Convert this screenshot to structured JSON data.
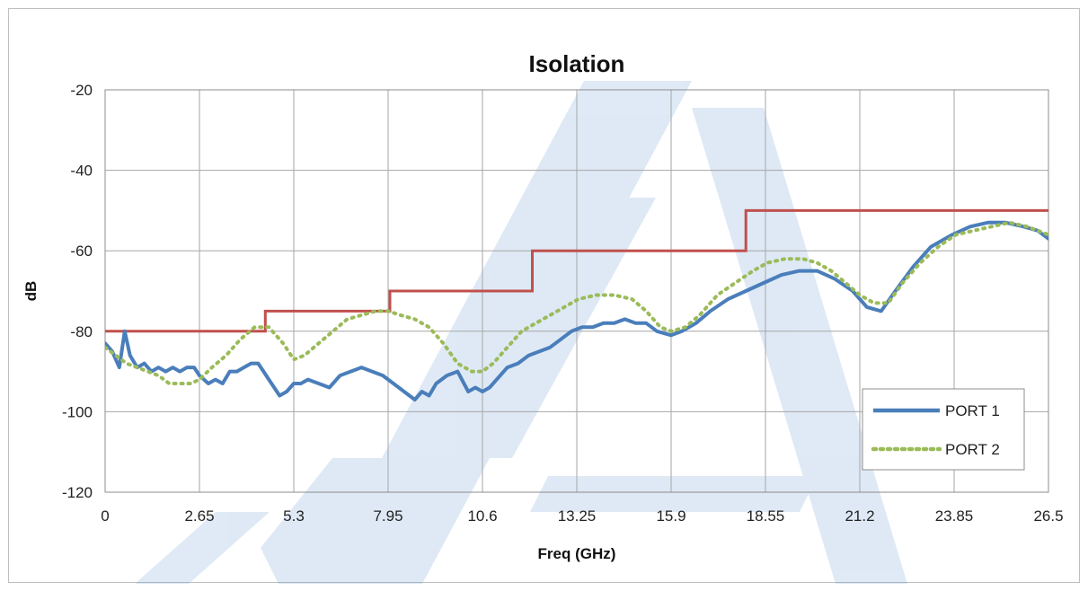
{
  "chart_data": {
    "type": "line",
    "title": "Isolation",
    "xlabel": "Freq (GHz)",
    "ylabel": "dB",
    "xlim": [
      0,
      26.5
    ],
    "ylim": [
      -120,
      -20
    ],
    "x_ticks": [
      "0",
      "2.65",
      "5.3",
      "7.95",
      "10.6",
      "13.25",
      "15.9",
      "18.55",
      "21.2",
      "23.85",
      "26.5"
    ],
    "y_ticks": [
      "-20",
      "-40",
      "-60",
      "-80",
      "-100",
      "-120"
    ],
    "grid": true,
    "legend_position": "bottom-right",
    "series": [
      {
        "name": "",
        "color": "#c0504d",
        "style": "step",
        "x": [
          0,
          4.5,
          4.5,
          8.0,
          8.0,
          12.0,
          12.0,
          18.0,
          18.0,
          26.5
        ],
        "values": [
          -80,
          -80,
          -75,
          -75,
          -70,
          -70,
          -60,
          -60,
          -50,
          -50
        ]
      },
      {
        "name": "PORT 1",
        "color": "#4a7ebb",
        "style": "solid",
        "x": [
          0,
          0.2,
          0.4,
          0.55,
          0.7,
          0.9,
          1.1,
          1.3,
          1.5,
          1.7,
          1.9,
          2.1,
          2.3,
          2.5,
          2.65,
          2.9,
          3.1,
          3.3,
          3.5,
          3.7,
          3.9,
          4.1,
          4.3,
          4.6,
          4.9,
          5.1,
          5.3,
          5.5,
          5.7,
          6.0,
          6.3,
          6.6,
          6.9,
          7.2,
          7.5,
          7.8,
          8.1,
          8.4,
          8.7,
          8.9,
          9.1,
          9.3,
          9.6,
          9.9,
          10.2,
          10.4,
          10.6,
          10.8,
          11.0,
          11.3,
          11.6,
          11.9,
          12.2,
          12.5,
          12.8,
          13.1,
          13.4,
          13.7,
          14.0,
          14.3,
          14.6,
          14.9,
          15.2,
          15.5,
          15.9,
          16.2,
          16.6,
          17.0,
          17.5,
          18.0,
          18.5,
          19.0,
          19.5,
          20.0,
          20.5,
          21.0,
          21.4,
          21.8,
          22.2,
          22.7,
          23.2,
          23.8,
          24.3,
          24.8,
          25.3,
          25.8,
          26.2,
          26.5
        ],
        "values": [
          -83,
          -85,
          -89,
          -80,
          -86,
          -89,
          -88,
          -90,
          -89,
          -90,
          -89,
          -90,
          -89,
          -89,
          -91,
          -93,
          -92,
          -93,
          -90,
          -90,
          -89,
          -88,
          -88,
          -92,
          -96,
          -95,
          -93,
          -93,
          -92,
          -93,
          -94,
          -91,
          -90,
          -89,
          -90,
          -91,
          -93,
          -95,
          -97,
          -95,
          -96,
          -93,
          -91,
          -90,
          -95,
          -94,
          -95,
          -94,
          -92,
          -89,
          -88,
          -86,
          -85,
          -84,
          -82,
          -80,
          -79,
          -79,
          -78,
          -78,
          -77,
          -78,
          -78,
          -80,
          -81,
          -80,
          -78,
          -75,
          -72,
          -70,
          -68,
          -66,
          -65,
          -65,
          -67,
          -70,
          -74,
          -75,
          -70,
          -64,
          -59,
          -56,
          -54,
          -53,
          -53,
          -54,
          -55,
          -57
        ]
      },
      {
        "name": "PORT 2",
        "color": "#9bbb59",
        "style": "dotted",
        "x": [
          0,
          0.3,
          0.6,
          0.9,
          1.2,
          1.5,
          1.8,
          2.1,
          2.4,
          2.65,
          3.0,
          3.4,
          3.8,
          4.2,
          4.6,
          5.0,
          5.3,
          5.6,
          6.0,
          6.4,
          6.8,
          7.2,
          7.6,
          7.95,
          8.3,
          8.7,
          9.1,
          9.5,
          9.9,
          10.3,
          10.6,
          10.9,
          11.3,
          11.7,
          12.1,
          12.5,
          12.9,
          13.3,
          13.8,
          14.3,
          14.8,
          15.2,
          15.6,
          15.9,
          16.3,
          16.7,
          17.2,
          17.7,
          18.2,
          18.6,
          19.1,
          19.6,
          20.0,
          20.4,
          20.8,
          21.2,
          21.6,
          22.0,
          22.4,
          22.9,
          23.4,
          23.9,
          24.4,
          24.9,
          25.4,
          25.9,
          26.5
        ],
        "values": [
          -84,
          -86,
          -88,
          -89,
          -90,
          -91,
          -93,
          -93,
          -93,
          -92,
          -89,
          -86,
          -82,
          -79,
          -79,
          -83,
          -87,
          -86,
          -83,
          -80,
          -77,
          -76,
          -75,
          -75,
          -76,
          -77,
          -79,
          -83,
          -88,
          -90,
          -90,
          -88,
          -84,
          -80,
          -78,
          -76,
          -74,
          -72,
          -71,
          -71,
          -72,
          -75,
          -79,
          -80,
          -79,
          -76,
          -71,
          -68,
          -65,
          -63,
          -62,
          -62,
          -63,
          -65,
          -68,
          -71,
          -73,
          -73,
          -68,
          -63,
          -59,
          -56,
          -55,
          -54,
          -53,
          -54,
          -56
        ]
      }
    ]
  }
}
